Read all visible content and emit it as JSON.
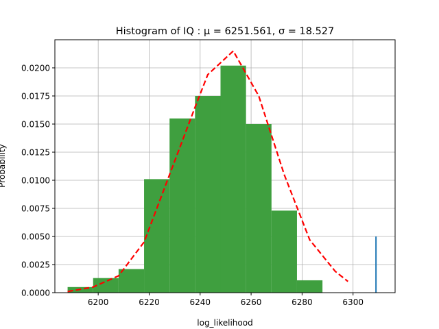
{
  "chart_data": {
    "type": "bar",
    "title": "Histogram of IQ : μ = 6251.561,  σ = 18.527",
    "xlabel": "log_likelihood",
    "ylabel": "Probability",
    "xlim": [
      6183,
      6316.5
    ],
    "ylim": [
      0,
      0.0225
    ],
    "grid": true,
    "x_ticks": [
      "6200",
      "6220",
      "6240",
      "6260",
      "6280",
      "6300"
    ],
    "x_tick_values": [
      6200,
      6220,
      6240,
      6260,
      6280,
      6300
    ],
    "y_ticks": [
      "0.0000",
      "0.0025",
      "0.0050",
      "0.0075",
      "0.0100",
      "0.0125",
      "0.0150",
      "0.0175",
      "0.0200"
    ],
    "y_tick_values": [
      0,
      0.0025,
      0.005,
      0.0075,
      0.01,
      0.0125,
      0.015,
      0.0175,
      0.02
    ],
    "histogram": {
      "color": "#3f9f3f",
      "bin_edges": [
        6188,
        6198,
        6208,
        6218,
        6228,
        6238,
        6248,
        6258,
        6268,
        6278,
        6288,
        6298
      ],
      "values": [
        0.0005,
        0.0013,
        0.0021,
        0.0101,
        0.0155,
        0.0175,
        0.0202,
        0.015,
        0.0073,
        0.0011,
        0
      ]
    },
    "fit_curve": {
      "color": "#ff0000",
      "style": "dashed",
      "x": [
        6188,
        6198,
        6208,
        6218,
        6228,
        6238,
        6243,
        6253,
        6263,
        6273,
        6283,
        6293,
        6298
      ],
      "y": [
        0.0001,
        0.0005,
        0.0015,
        0.0045,
        0.0105,
        0.0165,
        0.0194,
        0.0215,
        0.0175,
        0.0105,
        0.0047,
        0.0019,
        0.001
      ]
    },
    "marker_line": {
      "color": "#1f77b4",
      "x": 6309,
      "y": [
        0,
        0.005
      ]
    }
  }
}
